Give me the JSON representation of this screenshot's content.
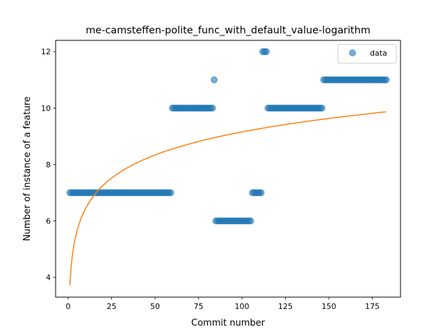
{
  "chart_data": {
    "type": "scatter",
    "title": "me-camsteffen-polite_func_with_default_value-logarithm",
    "xlabel": "Commit number",
    "ylabel": "Number of instance of a feature",
    "xlim": [
      -7.2,
      191.2
    ],
    "ylim": [
      3.3,
      12.4
    ],
    "xticks": [
      0,
      25,
      50,
      75,
      100,
      125,
      150,
      175
    ],
    "yticks": [
      4,
      6,
      8,
      10,
      12
    ],
    "grid": false,
    "legend": {
      "placement": "top-right",
      "entries": [
        "data"
      ]
    },
    "colors": {
      "scatter": "#1f77b4",
      "fit": "#ff7f0e"
    },
    "series": [
      {
        "name": "data",
        "kind": "scatter",
        "segments": [
          {
            "x_from": 1,
            "x_to": 59,
            "y": 7
          },
          {
            "x_from": 60,
            "x_to": 83,
            "y": 10
          },
          {
            "x_from": 84,
            "x_to": 84,
            "y": 11
          },
          {
            "x_from": 85,
            "x_to": 105,
            "y": 6
          },
          {
            "x_from": 106,
            "x_to": 111,
            "y": 7
          },
          {
            "x_from": 112,
            "x_to": 114,
            "y": 12
          },
          {
            "x_from": 115,
            "x_to": 146,
            "y": 10
          },
          {
            "x_from": 147,
            "x_to": 183,
            "y": 11
          }
        ]
      },
      {
        "kind": "line",
        "function": "a + b*ln(x)",
        "a": 3.72,
        "b": 1.18,
        "x_range": [
          1,
          183
        ]
      }
    ]
  }
}
